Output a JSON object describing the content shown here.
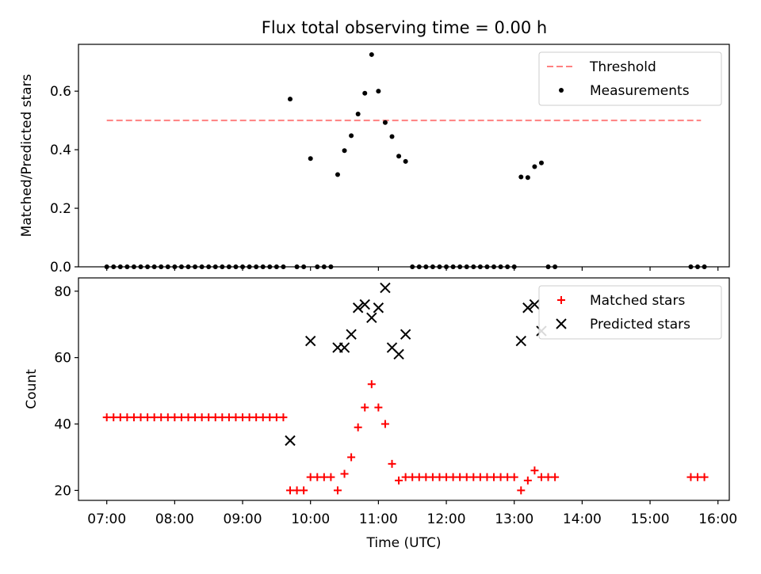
{
  "chart_data": [
    {
      "type": "scatter",
      "title": "Flux total observing time = 0.00 h",
      "xlabel": "",
      "ylabel": "Matched/Predicted stars",
      "xlim": [
        "06:35",
        "16:10"
      ],
      "ylim": [
        0,
        0.76
      ],
      "yticks": [
        0.0,
        0.2,
        0.4,
        0.6
      ],
      "ytick_labels": [
        "0.0",
        "0.2",
        "0.4",
        "0.6"
      ],
      "grid": false,
      "legend": {
        "position": "top-right",
        "entries": [
          "Threshold",
          "Measurements"
        ]
      },
      "threshold": {
        "name": "Threshold",
        "y": 0.5,
        "x_start": "07:00",
        "x_end": "15:45",
        "color": "#ff8080",
        "style": "dashed"
      },
      "series": [
        {
          "name": "Measurements",
          "marker": "dot",
          "color": "#000000",
          "x": [
            "07:00",
            "07:06",
            "07:12",
            "07:18",
            "07:24",
            "07:30",
            "07:36",
            "07:42",
            "07:48",
            "07:54",
            "08:00",
            "08:06",
            "08:12",
            "08:18",
            "08:24",
            "08:30",
            "08:36",
            "08:42",
            "08:48",
            "08:54",
            "09:00",
            "09:06",
            "09:12",
            "09:18",
            "09:24",
            "09:30",
            "09:36",
            "09:42",
            "09:48",
            "09:54",
            "10:00",
            "10:06",
            "10:12",
            "10:18",
            "10:24",
            "10:30",
            "10:36",
            "10:42",
            "10:48",
            "10:54",
            "11:00",
            "11:06",
            "11:12",
            "11:18",
            "11:24",
            "11:30",
            "11:36",
            "11:42",
            "11:48",
            "11:54",
            "12:00",
            "12:06",
            "12:12",
            "12:18",
            "12:24",
            "12:30",
            "12:36",
            "12:42",
            "12:48",
            "12:54",
            "13:00",
            "13:06",
            "13:12",
            "13:18",
            "13:24",
            "13:30",
            "13:36",
            "15:36",
            "15:42",
            "15:48"
          ],
          "y": [
            0,
            0,
            0,
            0,
            0,
            0,
            0,
            0,
            0,
            0,
            0,
            0,
            0,
            0,
            0,
            0,
            0,
            0,
            0,
            0,
            0,
            0,
            0,
            0,
            0,
            0,
            0,
            0.573,
            0,
            0,
            0.37,
            0,
            0,
            0,
            0.315,
            0.397,
            0.448,
            0.522,
            0.593,
            0.725,
            0.6,
            0.493,
            0.445,
            0.378,
            0.36,
            0,
            0,
            0,
            0,
            0,
            0,
            0,
            0,
            0,
            0,
            0,
            0,
            0,
            0,
            0,
            0,
            0.307,
            0.305,
            0.342,
            0.355,
            0,
            0,
            0,
            0,
            0
          ]
        }
      ]
    },
    {
      "type": "scatter",
      "title": "",
      "xlabel": "Time (UTC)",
      "ylabel": "Count",
      "xlim": [
        "06:35",
        "16:10"
      ],
      "ylim": [
        17,
        84
      ],
      "yticks": [
        20,
        40,
        60,
        80
      ],
      "ytick_labels": [
        "20",
        "40",
        "60",
        "80"
      ],
      "xticks": [
        "07:00",
        "08:00",
        "09:00",
        "10:00",
        "11:00",
        "12:00",
        "13:00",
        "14:00",
        "15:00",
        "16:00"
      ],
      "xtick_labels": [
        "07:00",
        "08:00",
        "09:00",
        "10:00",
        "11:00",
        "12:00",
        "13:00",
        "14:00",
        "15:00",
        "16:00"
      ],
      "grid": false,
      "legend": {
        "position": "top-right",
        "entries": [
          "Matched stars",
          "Predicted stars"
        ]
      },
      "series": [
        {
          "name": "Matched stars",
          "marker": "plus",
          "color": "#ff0000",
          "x": [
            "07:00",
            "07:06",
            "07:12",
            "07:18",
            "07:24",
            "07:30",
            "07:36",
            "07:42",
            "07:48",
            "07:54",
            "08:00",
            "08:06",
            "08:12",
            "08:18",
            "08:24",
            "08:30",
            "08:36",
            "08:42",
            "08:48",
            "08:54",
            "09:00",
            "09:06",
            "09:12",
            "09:18",
            "09:24",
            "09:30",
            "09:36",
            "09:42",
            "09:48",
            "09:54",
            "10:00",
            "10:06",
            "10:12",
            "10:18",
            "10:24",
            "10:30",
            "10:36",
            "10:42",
            "10:48",
            "10:54",
            "11:00",
            "11:06",
            "11:12",
            "11:18",
            "11:24",
            "11:30",
            "11:36",
            "11:42",
            "11:48",
            "11:54",
            "12:00",
            "12:06",
            "12:12",
            "12:18",
            "12:24",
            "12:30",
            "12:36",
            "12:42",
            "12:48",
            "12:54",
            "13:00",
            "13:06",
            "13:12",
            "13:18",
            "13:24",
            "13:30",
            "13:36",
            "15:36",
            "15:42",
            "15:48"
          ],
          "y": [
            42,
            42,
            42,
            42,
            42,
            42,
            42,
            42,
            42,
            42,
            42,
            42,
            42,
            42,
            42,
            42,
            42,
            42,
            42,
            42,
            42,
            42,
            42,
            42,
            42,
            42,
            42,
            20,
            20,
            20,
            24,
            24,
            24,
            24,
            20,
            25,
            30,
            39,
            45,
            52,
            45,
            40,
            28,
            23,
            24,
            24,
            24,
            24,
            24,
            24,
            24,
            24,
            24,
            24,
            24,
            24,
            24,
            24,
            24,
            24,
            24,
            20,
            23,
            26,
            24,
            24,
            24,
            24,
            24,
            24
          ]
        },
        {
          "name": "Predicted stars",
          "marker": "x",
          "color": "#000000",
          "x": [
            "09:42",
            "10:00",
            "10:24",
            "10:30",
            "10:36",
            "10:42",
            "10:48",
            "10:54",
            "11:00",
            "11:06",
            "11:12",
            "11:18",
            "11:24",
            "13:06",
            "13:12",
            "13:18",
            "13:24"
          ],
          "y": [
            35,
            65,
            63,
            63,
            67,
            75,
            76,
            72,
            75,
            81,
            63,
            61,
            67,
            65,
            75,
            76,
            68
          ]
        }
      ]
    }
  ]
}
